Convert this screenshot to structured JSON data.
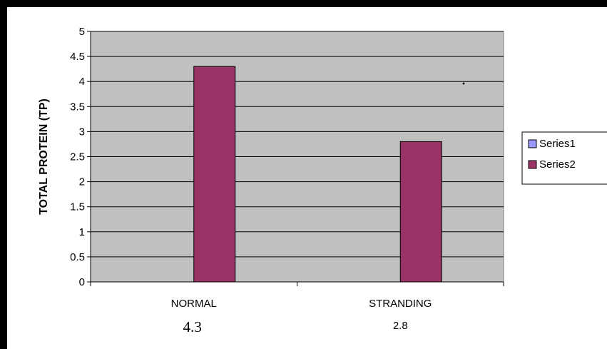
{
  "chart_data": {
    "type": "bar",
    "title": "",
    "xlabel": "",
    "ylabel": "TOTAL PROTEIN (TP)",
    "ylim": [
      0,
      5
    ],
    "ytick_step": 0.5,
    "yticks": [
      "0",
      "0.5",
      "1",
      "1.5",
      "2",
      "2.5",
      "3",
      "3.5",
      "4",
      "4.5",
      "5"
    ],
    "categories": [
      "NORMAL",
      "STRANDING"
    ],
    "category_value_labels": [
      "4.3",
      "2.8"
    ],
    "series": [
      {
        "name": "Series1",
        "values": [
          0,
          0
        ],
        "color": "#9999ff"
      },
      {
        "name": "Series2",
        "values": [
          4.3,
          2.8
        ],
        "color": "#993366"
      }
    ],
    "grid": true,
    "plot_background": "#c0c0c0",
    "legend": {
      "placement": "right"
    }
  }
}
